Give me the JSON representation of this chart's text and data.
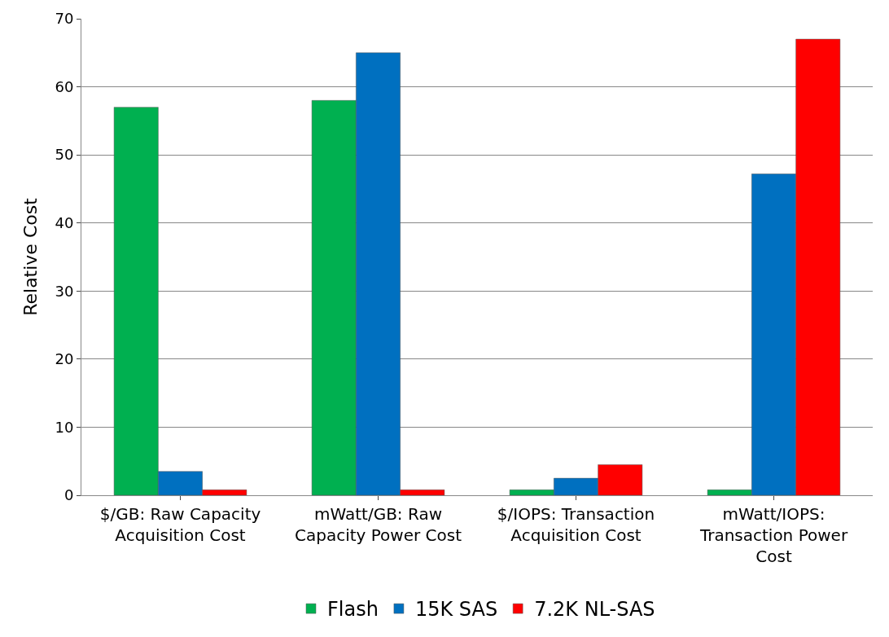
{
  "chart_data": {
    "type": "bar",
    "ylabel": "Relative Cost",
    "categories": [
      "$/GB: Raw Capacity Acquisition Cost",
      "mWatt/GB: Raw Capacity Power Cost",
      "$/IOPS: Transaction Acquisition Cost",
      "mWatt/IOPS: Transaction Power Cost"
    ],
    "series": [
      {
        "name": "Flash",
        "color": "#00b050",
        "values": [
          57,
          58,
          0.8,
          0.8
        ]
      },
      {
        "name": "15K SAS",
        "color": "#0070c0",
        "values": [
          3.5,
          65,
          2.5,
          47.2
        ]
      },
      {
        "name": "7.2K NL-SAS",
        "color": "#ff0000",
        "values": [
          0.8,
          0.8,
          4.5,
          67
        ]
      }
    ],
    "ylim": [
      0,
      70
    ],
    "yticks": [
      0,
      10,
      20,
      30,
      40,
      50,
      60,
      70
    ],
    "grid": "y",
    "legend": "bottom"
  }
}
